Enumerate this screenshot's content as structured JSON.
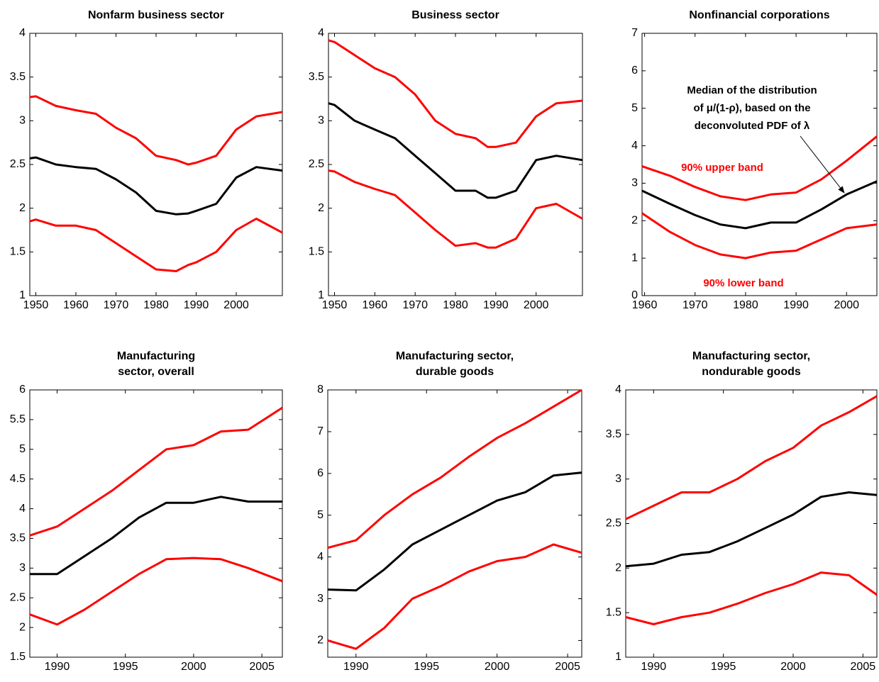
{
  "chart_data": [
    {
      "type": "line",
      "title": [
        "Nonfarm business sector"
      ],
      "x": [
        1948.5,
        1950,
        1955,
        1960,
        1965,
        1970,
        1975,
        1980,
        1985,
        1988,
        1990,
        1995,
        2000,
        2005,
        2011.5
      ],
      "series": [
        {
          "color": "#ff0000",
          "values": [
            3.27,
            3.28,
            3.17,
            3.12,
            3.08,
            2.92,
            2.8,
            2.6,
            2.55,
            2.5,
            2.52,
            2.6,
            2.9,
            3.05,
            3.1
          ]
        },
        {
          "color": "#000000",
          "values": [
            2.57,
            2.58,
            2.5,
            2.47,
            2.45,
            2.33,
            2.18,
            1.97,
            1.93,
            1.94,
            1.97,
            2.05,
            2.35,
            2.47,
            2.43
          ]
        },
        {
          "color": "#ff0000",
          "values": [
            1.85,
            1.87,
            1.8,
            1.8,
            1.75,
            1.6,
            1.45,
            1.3,
            1.28,
            1.35,
            1.38,
            1.5,
            1.75,
            1.88,
            1.72
          ]
        }
      ],
      "xlim": [
        1948.5,
        2011.5
      ],
      "xticks": [
        1950,
        1960,
        1970,
        1980,
        1990,
        2000
      ],
      "ylim": [
        1,
        4
      ],
      "yticks": [
        1,
        1.5,
        2,
        2.5,
        3,
        3.5,
        4
      ]
    },
    {
      "type": "line",
      "title": [
        "Business sector"
      ],
      "x": [
        1948.5,
        1950,
        1955,
        1960,
        1965,
        1970,
        1975,
        1980,
        1985,
        1988,
        1990,
        1995,
        2000,
        2005,
        2011.5
      ],
      "series": [
        {
          "color": "#ff0000",
          "values": [
            3.92,
            3.9,
            3.75,
            3.6,
            3.5,
            3.3,
            3.0,
            2.85,
            2.8,
            2.7,
            2.7,
            2.75,
            3.05,
            3.2,
            3.23
          ]
        },
        {
          "color": "#000000",
          "values": [
            3.2,
            3.18,
            3.0,
            2.9,
            2.8,
            2.6,
            2.4,
            2.2,
            2.2,
            2.12,
            2.12,
            2.2,
            2.55,
            2.6,
            2.55
          ]
        },
        {
          "color": "#ff0000",
          "values": [
            2.43,
            2.42,
            2.3,
            2.22,
            2.15,
            1.95,
            1.75,
            1.57,
            1.6,
            1.55,
            1.55,
            1.65,
            2.0,
            2.05,
            1.88
          ]
        }
      ],
      "xlim": [
        1948.5,
        2011.5
      ],
      "xticks": [
        1950,
        1960,
        1970,
        1980,
        1990,
        2000
      ],
      "ylim": [
        1,
        4
      ],
      "yticks": [
        1,
        1.5,
        2,
        2.5,
        3,
        3.5,
        4
      ]
    },
    {
      "type": "line",
      "title": [
        "Nonfinancial corporations"
      ],
      "x": [
        1959.5,
        1965,
        1970,
        1975,
        1980,
        1985,
        1990,
        1995,
        2000,
        2006
      ],
      "series": [
        {
          "color": "#ff0000",
          "values": [
            3.45,
            3.2,
            2.9,
            2.65,
            2.55,
            2.7,
            2.75,
            3.1,
            3.6,
            4.25
          ]
        },
        {
          "color": "#000000",
          "values": [
            2.8,
            2.45,
            2.15,
            1.9,
            1.8,
            1.95,
            1.95,
            2.3,
            2.7,
            3.05
          ]
        },
        {
          "color": "#ff0000",
          "values": [
            2.2,
            1.7,
            1.35,
            1.1,
            1.0,
            1.15,
            1.2,
            1.5,
            1.8,
            1.9
          ]
        }
      ],
      "annotation_lines": [
        "Median of the distribution",
        "of μ/(1-ρ), based on the",
        "deconvoluted PDF of λ"
      ],
      "upper_label": "90% upper band",
      "lower_label": "90% lower band",
      "xlim": [
        1959.5,
        2006
      ],
      "xticks": [
        1960,
        1970,
        1980,
        1990,
        2000
      ],
      "ylim": [
        0,
        7
      ],
      "yticks": [
        0,
        1,
        2,
        3,
        4,
        5,
        6,
        7
      ]
    },
    {
      "type": "line",
      "title": [
        "Manufacturing",
        "sector, overall"
      ],
      "x": [
        1988,
        1990,
        1992,
        1994,
        1996,
        1998,
        2000,
        2002,
        2004,
        2006.5
      ],
      "series": [
        {
          "color": "#ff0000",
          "values": [
            3.55,
            3.7,
            4.0,
            4.3,
            4.65,
            5.0,
            5.07,
            5.3,
            5.33,
            5.7
          ]
        },
        {
          "color": "#000000",
          "values": [
            2.9,
            2.9,
            3.2,
            3.5,
            3.85,
            4.1,
            4.1,
            4.2,
            4.12,
            4.12
          ]
        },
        {
          "color": "#ff0000",
          "values": [
            2.22,
            2.05,
            2.3,
            2.6,
            2.9,
            3.15,
            3.17,
            3.15,
            3.0,
            2.78
          ]
        }
      ],
      "xlim": [
        1988,
        2006.5
      ],
      "xticks": [
        1990,
        1995,
        2000,
        2005
      ],
      "ylim": [
        1.5,
        6
      ],
      "yticks": [
        1.5,
        2,
        2.5,
        3,
        3.5,
        4,
        4.5,
        5,
        5.5,
        6
      ]
    },
    {
      "type": "line",
      "title": [
        "Manufacturing sector,",
        "durable goods"
      ],
      "x": [
        1988,
        1990,
        1992,
        1994,
        1996,
        1998,
        2000,
        2002,
        2004,
        2006
      ],
      "series": [
        {
          "color": "#ff0000",
          "values": [
            4.22,
            4.4,
            5.0,
            5.5,
            5.9,
            6.4,
            6.85,
            7.2,
            7.6,
            8.0
          ]
        },
        {
          "color": "#000000",
          "values": [
            3.22,
            3.2,
            3.7,
            4.3,
            4.65,
            5.0,
            5.35,
            5.55,
            5.95,
            6.02
          ]
        },
        {
          "color": "#ff0000",
          "values": [
            2.0,
            1.8,
            2.3,
            3.0,
            3.3,
            3.65,
            3.9,
            4.0,
            4.3,
            4.1
          ]
        }
      ],
      "xlim": [
        1988,
        2006
      ],
      "xticks": [
        1990,
        1995,
        2000,
        2005
      ],
      "ylim": [
        1.6,
        8
      ],
      "yticks": [
        2,
        3,
        4,
        5,
        6,
        7,
        8
      ]
    },
    {
      "type": "line",
      "title": [
        "Manufacturing sector,",
        "nondurable goods"
      ],
      "x": [
        1988,
        1990,
        1992,
        1994,
        1996,
        1998,
        2000,
        2002,
        2004,
        2006
      ],
      "series": [
        {
          "color": "#ff0000",
          "values": [
            2.55,
            2.7,
            2.85,
            2.85,
            3.0,
            3.2,
            3.35,
            3.6,
            3.75,
            3.93
          ]
        },
        {
          "color": "#000000",
          "values": [
            2.02,
            2.05,
            2.15,
            2.18,
            2.3,
            2.45,
            2.6,
            2.8,
            2.85,
            2.82
          ]
        },
        {
          "color": "#ff0000",
          "values": [
            1.45,
            1.37,
            1.45,
            1.5,
            1.6,
            1.72,
            1.82,
            1.95,
            1.92,
            1.7
          ]
        }
      ],
      "xlim": [
        1988,
        2006
      ],
      "xticks": [
        1990,
        1995,
        2000,
        2005
      ],
      "ylim": [
        1,
        4
      ],
      "yticks": [
        1,
        1.5,
        2,
        2.5,
        3,
        3.5,
        4
      ]
    }
  ]
}
